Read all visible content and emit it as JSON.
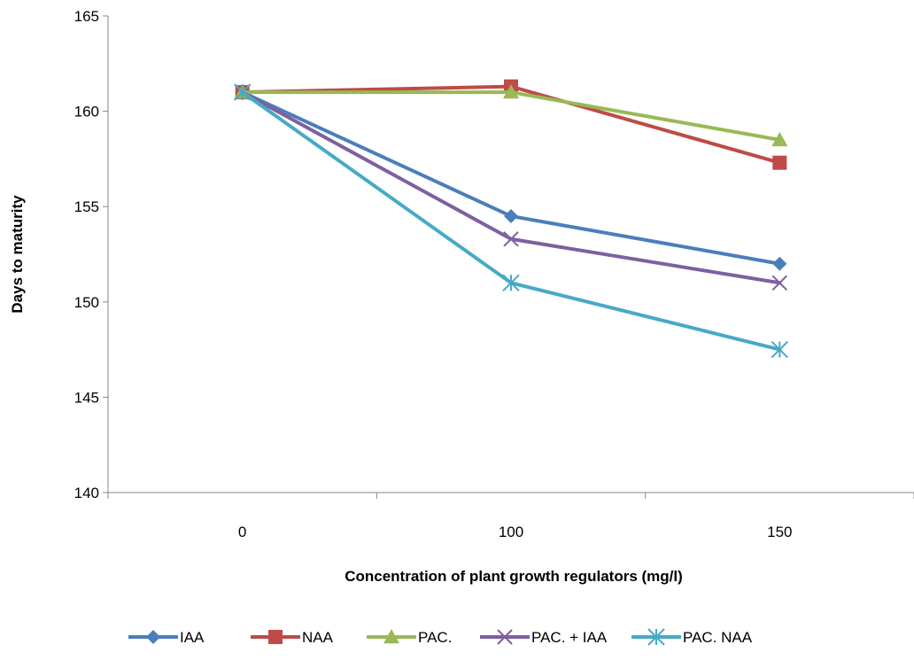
{
  "chart_data": {
    "type": "line",
    "categories": [
      "0",
      "100",
      "150"
    ],
    "xlabel": "Concentration of plant growth regulators (mg/l)",
    "ylabel": "Days to maturity",
    "ylim": [
      140,
      165
    ],
    "yticks": [
      140,
      145,
      150,
      155,
      160,
      165
    ],
    "grid": false,
    "legend": "bottom",
    "series": [
      {
        "name": "IAA",
        "values": [
          161,
          154.5,
          152
        ],
        "color": "#4a7ebb",
        "marker": "diamond"
      },
      {
        "name": "NAA",
        "values": [
          161,
          161.3,
          157.3
        ],
        "color": "#be4b48",
        "marker": "square"
      },
      {
        "name": "PAC.",
        "values": [
          161,
          161,
          158.5
        ],
        "color": "#98b954",
        "marker": "triangle"
      },
      {
        "name": "PAC. + IAA",
        "values": [
          161,
          153.3,
          151
        ],
        "color": "#7d60a0",
        "marker": "x"
      },
      {
        "name": "PAC. NAA",
        "values": [
          161,
          151,
          147.5
        ],
        "color": "#46aac5",
        "marker": "star"
      }
    ]
  }
}
